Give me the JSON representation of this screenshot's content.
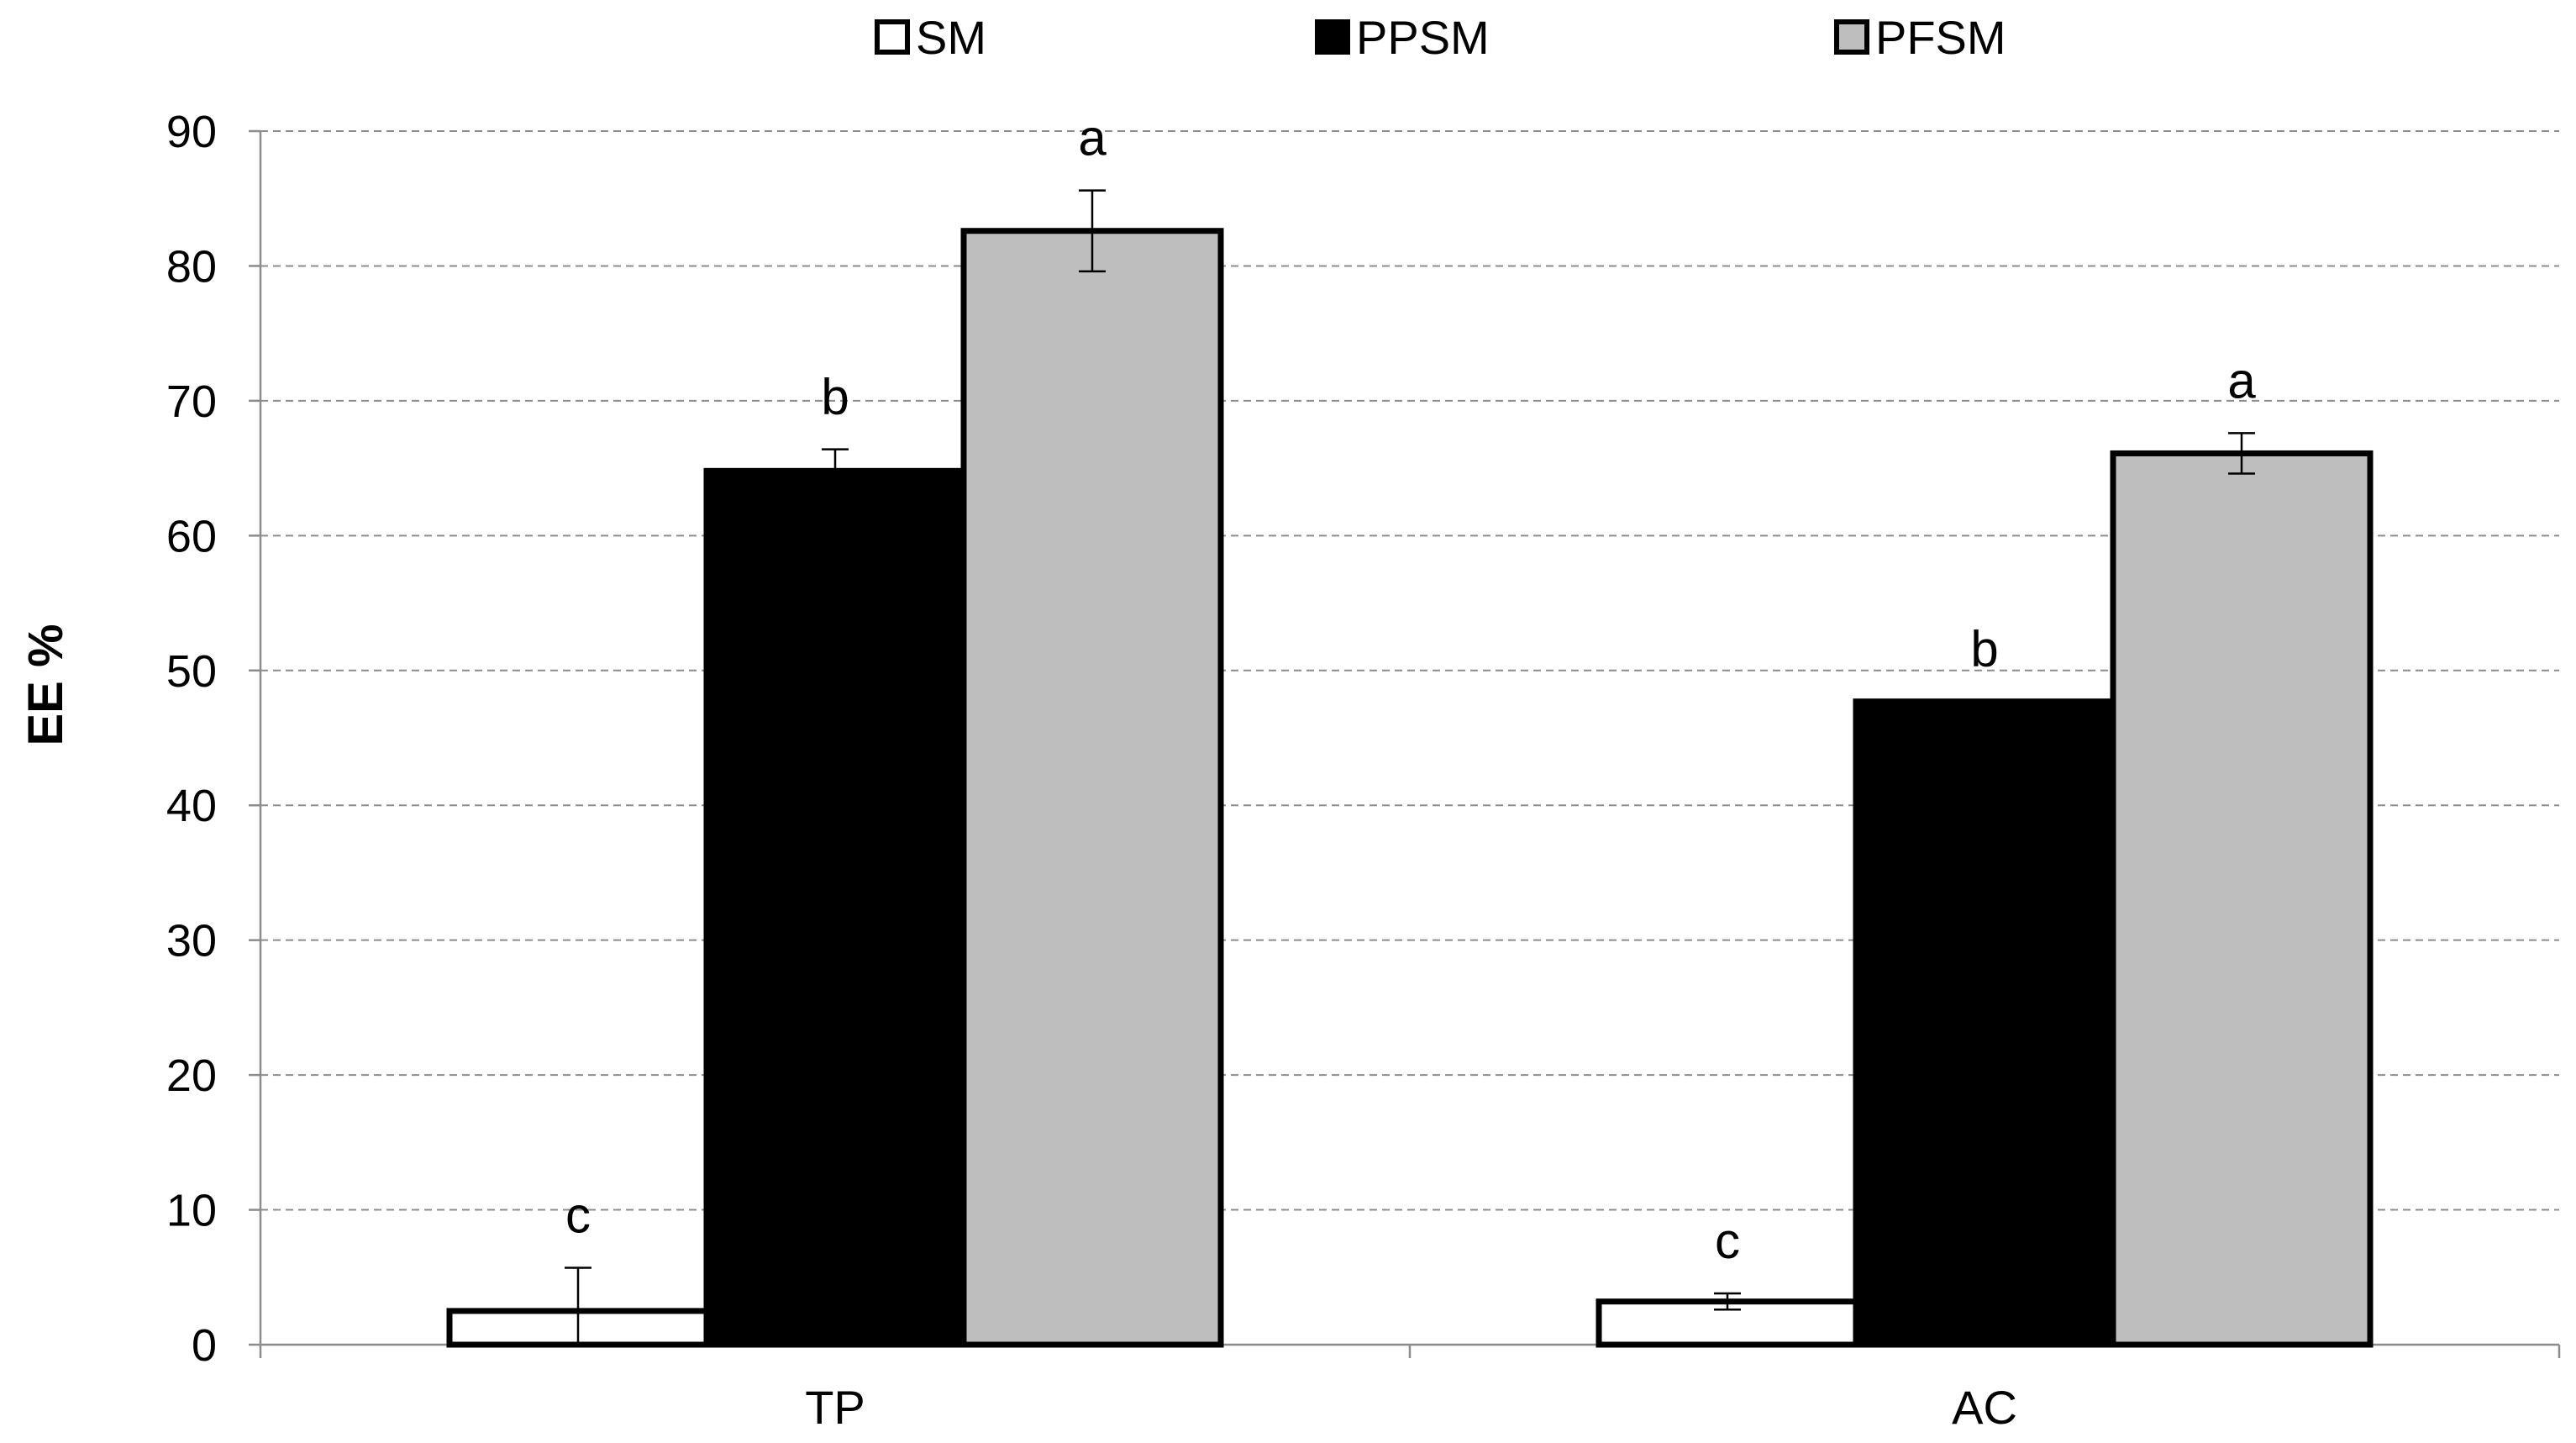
{
  "chart_data": {
    "type": "bar",
    "title": "",
    "xlabel": "",
    "ylabel": "EE %",
    "ylim": [
      0,
      90
    ],
    "yticks": [
      0,
      10,
      20,
      30,
      40,
      50,
      60,
      70,
      80,
      90
    ],
    "grid": true,
    "legend_position": "top-center",
    "categories": [
      "TP",
      "AC"
    ],
    "series": [
      {
        "name": "SM",
        "color": "#ffffff",
        "values": [
          2.5,
          3.2
        ],
        "errors": [
          3.2,
          0.6
        ],
        "letters": [
          "c",
          "c"
        ]
      },
      {
        "name": "PPSM",
        "color": "#000000",
        "values": [
          64.8,
          47.7
        ],
        "errors": [
          1.6,
          0.0
        ],
        "letters": [
          "b",
          "b"
        ]
      },
      {
        "name": "PFSM",
        "color": "#bebebe",
        "values": [
          82.6,
          66.1
        ],
        "errors": [
          3.0,
          1.5
        ],
        "letters": [
          "a",
          "a"
        ]
      }
    ]
  }
}
